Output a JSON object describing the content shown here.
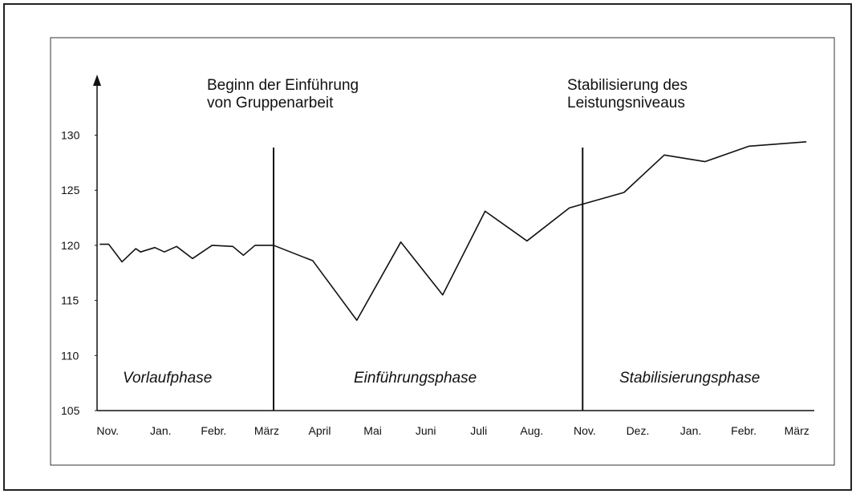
{
  "chart_data": {
    "type": "line",
    "annotations": [
      [
        "Beginn der Einführung",
        "von Gruppenarbeit"
      ],
      [
        "Stabilisierung des",
        "Leistungsniveaus"
      ]
    ],
    "phases": [
      "Vorlaufphase",
      "Einführungsphase",
      "Stabilisierungsphase"
    ],
    "x": [
      -0.15,
      0.02,
      0.27,
      0.53,
      0.62,
      0.89,
      1.07,
      1.3,
      1.6,
      1.97,
      2.36,
      2.56,
      2.78,
      3.13,
      3.87,
      4.7,
      5.53,
      6.32,
      7.12,
      7.91,
      8.71,
      9.74,
      10.5,
      11.27,
      12.1,
      13.18
    ],
    "series": [
      {
        "color": "#111111",
        "values": [
          120.1,
          120.1,
          118.5,
          119.7,
          119.4,
          119.8,
          119.4,
          119.9,
          118.8,
          120,
          119.9,
          119.1,
          120,
          120,
          118.6,
          113.2,
          120.3,
          115.5,
          123.1,
          120.4,
          123.4,
          124.8,
          128.2,
          127.6,
          129,
          129.4
        ]
      }
    ],
    "vlines": [
      3.13,
      8.96
    ],
    "xlim": [
      -0.2,
      13.33
    ],
    "xticks": [
      {
        "value": 0,
        "label": "Nov."
      },
      {
        "value": 1,
        "label": "Jan."
      },
      {
        "value": 2,
        "label": "Febr."
      },
      {
        "value": 3,
        "label": "März"
      },
      {
        "value": 4,
        "label": "April"
      },
      {
        "value": 5,
        "label": "Mai"
      },
      {
        "value": 6,
        "label": "Juni"
      },
      {
        "value": 7,
        "label": "Juli"
      },
      {
        "value": 8,
        "label": "Aug."
      },
      {
        "value": 9,
        "label": "Nov."
      },
      {
        "value": 10,
        "label": "Dez."
      },
      {
        "value": 11,
        "label": "Jan."
      },
      {
        "value": 12,
        "label": "Febr."
      },
      {
        "value": 13,
        "label": "März"
      }
    ],
    "ylim": [
      105,
      135.5
    ],
    "yticks": [
      105,
      110,
      115,
      120,
      125,
      130
    ]
  }
}
